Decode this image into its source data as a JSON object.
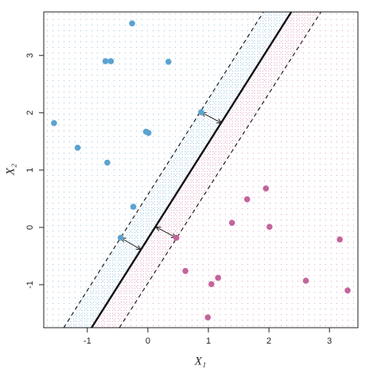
{
  "chart_data": {
    "type": "scatter",
    "xlabel": "X₁",
    "ylabel": "X₂",
    "xlim": [
      -1.72,
      3.47
    ],
    "ylim": [
      -1.75,
      3.76
    ],
    "xticks": [
      -1,
      0,
      1,
      2,
      3
    ],
    "yticks": [
      -1,
      0,
      1,
      2,
      3
    ],
    "series": [
      {
        "color": "#5ba3d0",
        "x": [
          -0.26,
          -0.7,
          -0.61,
          0.34,
          -1.55,
          -1.16,
          -0.67,
          -0.03,
          0.01,
          0.88,
          -0.24,
          -0.45
        ],
        "y": [
          3.56,
          2.9,
          2.9,
          2.89,
          1.82,
          1.39,
          1.13,
          1.67,
          1.65,
          2.01,
          0.36,
          -0.18
        ]
      },
      {
        "color": "#c4649c",
        "x": [
          0.47,
          0.62,
          1.39,
          1.64,
          1.95,
          2.01,
          1.16,
          1.05,
          0.99,
          2.61,
          3.17,
          3.3
        ],
        "y": [
          -0.18,
          -0.76,
          0.08,
          0.49,
          0.68,
          0.01,
          -0.88,
          -0.99,
          -1.57,
          -0.93,
          -0.21,
          -1.1
        ]
      }
    ],
    "lines": [
      {
        "style": "dashed",
        "x": [
          -1.39,
          1.91
        ],
        "y": [
          -1.75,
          3.76
        ]
      },
      {
        "style": "solid",
        "x": [
          -0.93,
          2.37
        ],
        "y": [
          -1.75,
          3.76
        ]
      },
      {
        "style": "dashed",
        "x": [
          -0.47,
          2.86
        ],
        "y": [
          -1.75,
          3.76
        ]
      }
    ],
    "arrows": [
      {
        "x": [
          0.88,
          1.22
        ],
        "y": [
          2.01,
          1.82
        ]
      },
      {
        "x": [
          -0.45,
          -0.11
        ],
        "y": [
          -0.18,
          -0.39
        ]
      },
      {
        "x": [
          0.47,
          0.13
        ],
        "y": [
          -0.18,
          0.01
        ]
      }
    ]
  }
}
